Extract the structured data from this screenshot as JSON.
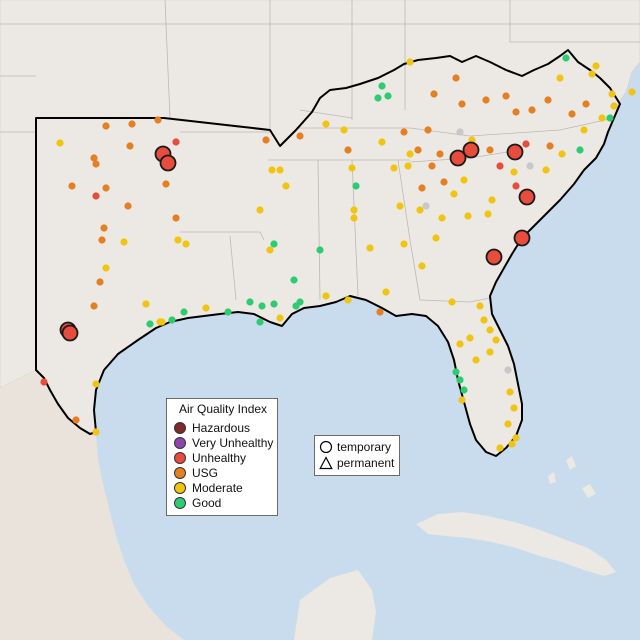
{
  "legend": {
    "title": "Air Quality Index",
    "categories": [
      {
        "label": "Hazardous",
        "color": "#7e2a2a"
      },
      {
        "label": "Very Unhealthy",
        "color": "#8e44ad"
      },
      {
        "label": "Unhealthy",
        "color": "#e74c3c"
      },
      {
        "label": "USG",
        "color": "#e67e22"
      },
      {
        "label": "Moderate",
        "color": "#f1c40f"
      },
      {
        "label": "Good",
        "color": "#2ecc71"
      }
    ]
  },
  "shape_legend": {
    "temporary": "temporary",
    "permanent": "permanent"
  },
  "colors": {
    "land": "#ece8e3",
    "water": "#c9dced",
    "boundary": "#000000",
    "state_lines": "#bdb8b2",
    "no_data": "#c8c8c8"
  }
}
